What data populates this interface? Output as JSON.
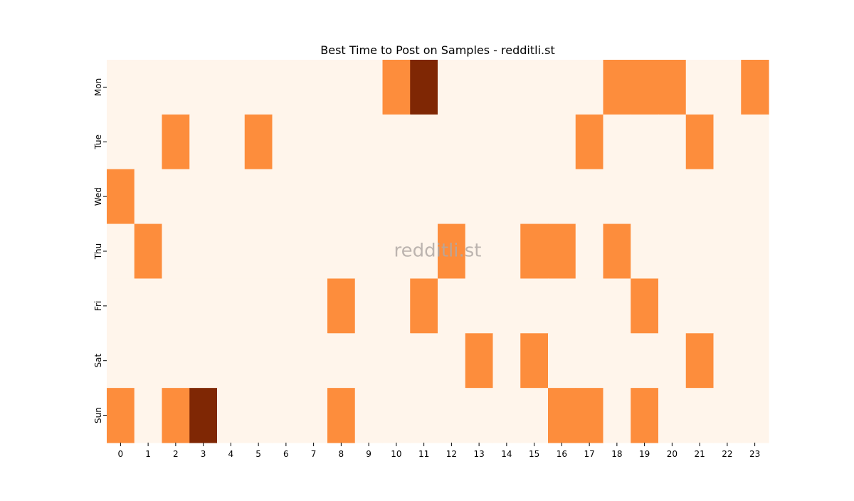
{
  "chart_data": {
    "type": "heatmap",
    "title": "Best Time to Post on Samples - redditli.st",
    "watermark": "redditli.st",
    "xlabel": "",
    "ylabel": "",
    "x_categories": [
      "0",
      "1",
      "2",
      "3",
      "4",
      "5",
      "6",
      "7",
      "8",
      "9",
      "10",
      "11",
      "12",
      "13",
      "14",
      "15",
      "16",
      "17",
      "18",
      "19",
      "20",
      "21",
      "22",
      "23"
    ],
    "y_categories": [
      "Mon",
      "Tue",
      "Wed",
      "Thu",
      "Fri",
      "Sat",
      "Sun"
    ],
    "values": [
      [
        0,
        0,
        0,
        0,
        0,
        0,
        0,
        0,
        0,
        0,
        1,
        2,
        0,
        0,
        0,
        0,
        0,
        0,
        1,
        1,
        1,
        0,
        0,
        1
      ],
      [
        0,
        0,
        1,
        0,
        0,
        1,
        0,
        0,
        0,
        0,
        0,
        0,
        0,
        0,
        0,
        0,
        0,
        1,
        0,
        0,
        0,
        1,
        0,
        0
      ],
      [
        1,
        0,
        0,
        0,
        0,
        0,
        0,
        0,
        0,
        0,
        0,
        0,
        0,
        0,
        0,
        0,
        0,
        0,
        0,
        0,
        0,
        0,
        0,
        0
      ],
      [
        0,
        1,
        0,
        0,
        0,
        0,
        0,
        0,
        0,
        0,
        0,
        0,
        1,
        0,
        0,
        1,
        1,
        0,
        1,
        0,
        0,
        0,
        0,
        0
      ],
      [
        0,
        0,
        0,
        0,
        0,
        0,
        0,
        0,
        1,
        0,
        0,
        1,
        0,
        0,
        0,
        0,
        0,
        0,
        0,
        1,
        0,
        0,
        0,
        0
      ],
      [
        0,
        0,
        0,
        0,
        0,
        0,
        0,
        0,
        0,
        0,
        0,
        0,
        0,
        1,
        0,
        1,
        0,
        0,
        0,
        0,
        0,
        1,
        0,
        0
      ],
      [
        1,
        0,
        1,
        2,
        0,
        0,
        0,
        0,
        1,
        0,
        0,
        0,
        0,
        0,
        0,
        0,
        1,
        1,
        0,
        1,
        0,
        0,
        0,
        0
      ]
    ],
    "value_range": [
      0,
      2
    ],
    "colormap": "Oranges",
    "colors": {
      "0": "#fff5eb",
      "1": "#fd8d3c",
      "2": "#7f2704"
    },
    "colorbar": false,
    "grid": false
  }
}
